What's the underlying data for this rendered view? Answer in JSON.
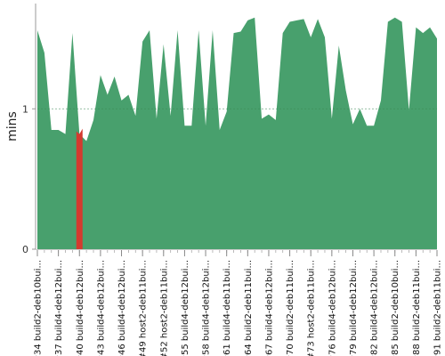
{
  "chart_data": {
    "type": "area",
    "title": "",
    "xlabel": "",
    "ylabel": "mins",
    "ylim": [
      0,
      1.75
    ],
    "y_ticks": [
      0,
      1
    ],
    "grid": "dashed line at y=1",
    "colors": {
      "area": "#48a06d",
      "highlight": "#d43a2f",
      "gridline": "#3a8a55",
      "axis": "#999999"
    },
    "highlight_build": 40,
    "x": [
      34,
      35,
      36,
      37,
      38,
      39,
      40,
      41,
      42,
      43,
      44,
      45,
      46,
      47,
      48,
      49,
      50,
      51,
      52,
      53,
      54,
      55,
      56,
      57,
      58,
      59,
      60,
      61,
      62,
      63,
      64,
      65,
      66,
      67,
      68,
      69,
      70,
      71,
      72,
      73,
      74,
      75,
      76,
      77,
      78,
      79,
      80,
      81,
      82,
      83,
      84,
      85,
      86,
      87,
      88,
      89,
      90,
      91
    ],
    "values": [
      1.56,
      1.4,
      0.85,
      0.85,
      0.82,
      1.54,
      0.82,
      0.77,
      0.92,
      1.24,
      1.1,
      1.23,
      1.06,
      1.1,
      0.95,
      1.48,
      1.56,
      0.93,
      1.46,
      0.95,
      1.56,
      0.88,
      0.88,
      1.56,
      0.88,
      1.56,
      0.85,
      0.98,
      1.54,
      1.55,
      1.63,
      1.65,
      0.93,
      0.96,
      0.92,
      1.54,
      1.62,
      1.63,
      1.64,
      1.51,
      1.64,
      1.51,
      0.93,
      1.45,
      1.13,
      0.89,
      1.0,
      0.88,
      0.88,
      1.06,
      1.62,
      1.65,
      1.62,
      0.99,
      1.58,
      1.54,
      1.58,
      1.5
    ],
    "tick_labels": [
      "#34 build2-deb10bui...",
      "#37 build4-deb12bui...",
      "#40 build4-deb12bui...",
      "#43 build4-deb12bui...",
      "#46 build4-deb12bui...",
      "#49 host2-deb11bui...",
      "#52 host2-deb11bui...",
      "#55 build4-deb12bui...",
      "#58 build4-deb12bui...",
      "#61 build4-deb11bui...",
      "#64 build2-deb11bui...",
      "#67 build4-deb12bui...",
      "#70 build2-deb11bui...",
      "#73 host2-deb11bui...",
      "#76 build4-deb12bui...",
      "#79 build4-deb12bui...",
      "#82 build4-deb12bui...",
      "#85 build2-deb10bui...",
      "#88 build2-deb11bui...",
      "#91 build2-deb11bui..."
    ]
  }
}
